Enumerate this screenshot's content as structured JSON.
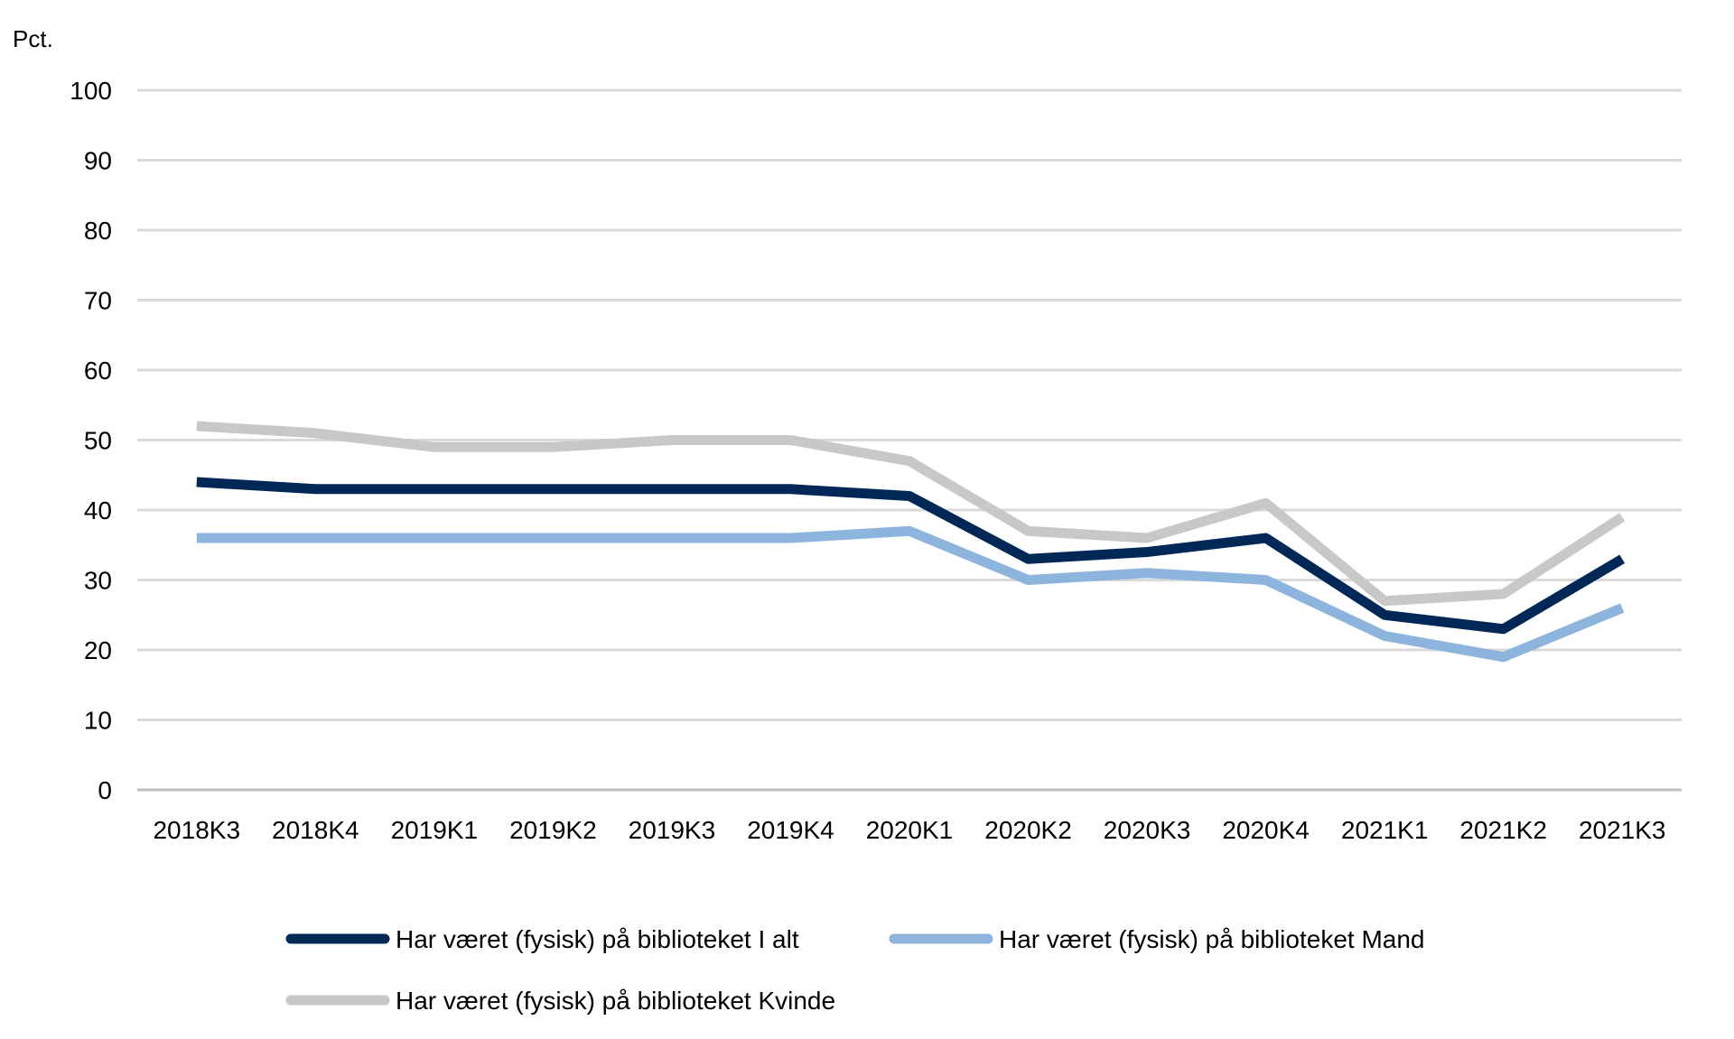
{
  "chart_data": {
    "type": "line",
    "title": "",
    "xlabel": "",
    "ylabel": "Pct.",
    "ylim": [
      0,
      100
    ],
    "yticks": [
      0,
      10,
      20,
      30,
      40,
      50,
      60,
      70,
      80,
      90,
      100
    ],
    "grid": true,
    "legend_position": "bottom",
    "categories": [
      "2018K3",
      "2018K4",
      "2019K1",
      "2019K2",
      "2019K3",
      "2019K4",
      "2020K1",
      "2020K2",
      "2020K3",
      "2020K4",
      "2021K1",
      "2021K2",
      "2021K3"
    ],
    "series": [
      {
        "name": "Har været (fysisk) på biblioteket I alt",
        "color": "#002856",
        "values": [
          44,
          43,
          43,
          43,
          43,
          43,
          42,
          33,
          34,
          36,
          25,
          23,
          33
        ]
      },
      {
        "name": "Har været (fysisk) på biblioteket Mand",
        "color": "#8db4dd",
        "values": [
          36,
          36,
          36,
          36,
          36,
          36,
          37,
          30,
          31,
          30,
          22,
          19,
          26
        ]
      },
      {
        "name": "Har været (fysisk) på biblioteket Kvinde",
        "color": "#c8c8c8",
        "values": [
          52,
          51,
          49,
          49,
          50,
          50,
          47,
          37,
          36,
          41,
          27,
          28,
          39
        ]
      }
    ]
  }
}
